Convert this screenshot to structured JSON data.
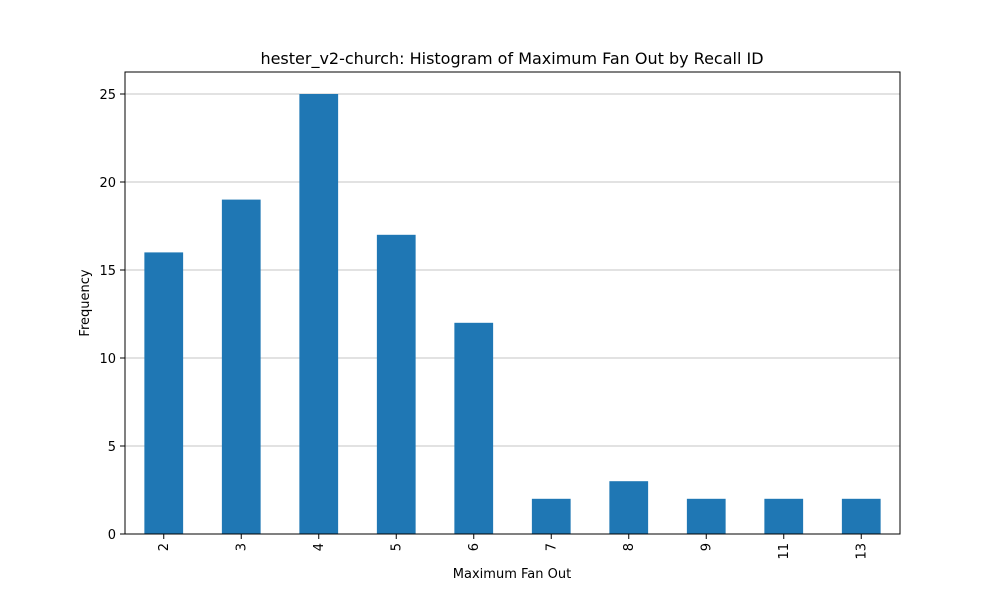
{
  "chart_data": {
    "type": "bar",
    "title": "hester_v2-church: Histogram of Maximum Fan Out by Recall ID",
    "xlabel": "Maximum Fan Out",
    "ylabel": "Frequency",
    "categories": [
      "2",
      "3",
      "4",
      "5",
      "6",
      "7",
      "8",
      "9",
      "11",
      "13"
    ],
    "values": [
      16,
      19,
      25,
      17,
      12,
      2,
      3,
      2,
      2,
      2
    ],
    "ylim": [
      0,
      26.25
    ],
    "yticks": [
      0,
      5,
      10,
      15,
      20,
      25
    ],
    "bar_color": "#1f77b4",
    "grid": "y",
    "xtick_rotation": "vertical"
  }
}
